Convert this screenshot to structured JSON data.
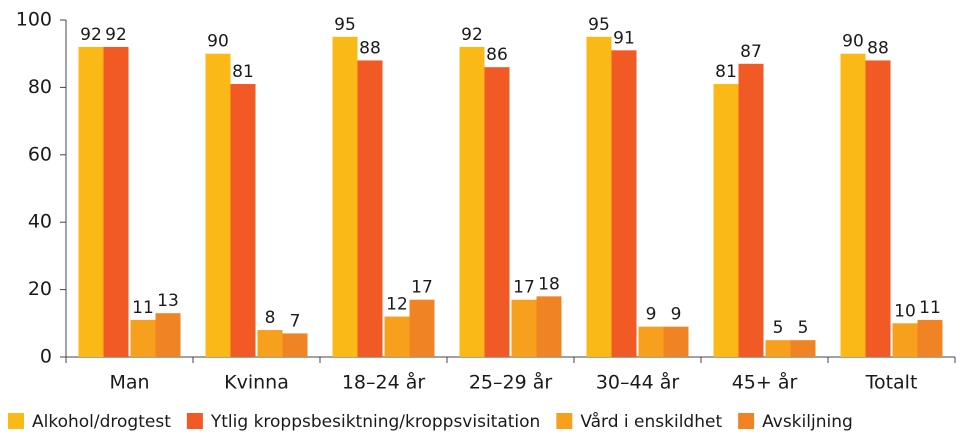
{
  "chart_data": {
    "type": "bar",
    "categories": [
      "Man",
      "Kvinna",
      "18–24 år",
      "25–29 år",
      "30–44 år",
      "45+ år",
      "Totalt"
    ],
    "series": [
      {
        "name": "Alkohol/drogtest",
        "color": "#fbb917",
        "values": [
          92,
          90,
          95,
          92,
          95,
          81,
          90
        ]
      },
      {
        "name": "Ytlig kroppsbesiktning/kroppsvisitation",
        "color": "#f15a24",
        "values": [
          92,
          81,
          88,
          86,
          91,
          87,
          88
        ]
      },
      {
        "name": "Vård i enskildhet",
        "color": "#f7a01d",
        "values": [
          11,
          8,
          12,
          17,
          9,
          5,
          10
        ]
      },
      {
        "name": "Avskiljning",
        "color": "#f08424",
        "values": [
          13,
          7,
          17,
          18,
          9,
          5,
          11
        ]
      }
    ],
    "ylim": [
      0,
      100
    ],
    "yticks": [
      0,
      20,
      40,
      60,
      80,
      100
    ],
    "grid": false,
    "legend": "bottom"
  }
}
